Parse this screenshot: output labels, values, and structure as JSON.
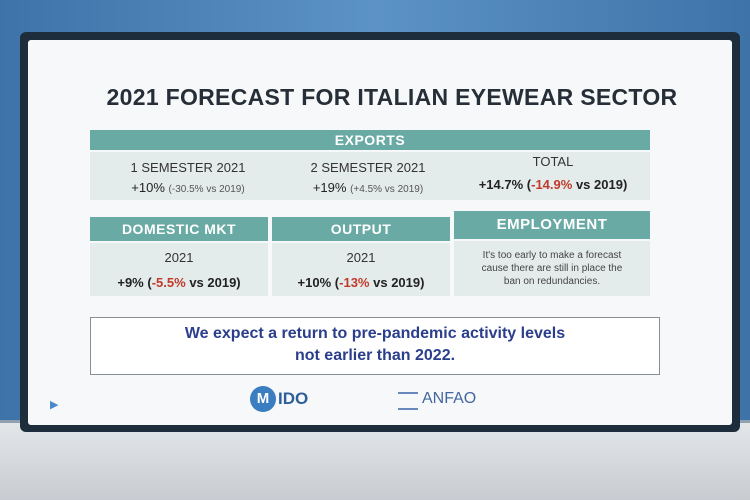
{
  "slide": {
    "title": "2021 FORECAST FOR ITALIAN EYEWEAR SECTOR",
    "exports": {
      "header": "EXPORTS",
      "sem1_label": "1 SEMESTER 2021",
      "sem1_value": "+10%",
      "sem1_note": "(-30.5% vs 2019)",
      "sem2_label": "2 SEMESTER 2021",
      "sem2_value": "+19%",
      "sem2_note": "(+4.5% vs 2019)",
      "total_label": "TOTAL",
      "total_value": "+14.7%",
      "total_open": "(",
      "total_change": "-14.9%",
      "total_note": "vs 2019)"
    },
    "domestic": {
      "header": "DOMESTIC MKT",
      "year": "2021",
      "value": "+9%",
      "open": "(",
      "change": "-5.5%",
      "note": "vs 2019)"
    },
    "output": {
      "header": "OUTPUT",
      "year": "2021",
      "value": "+10%",
      "open": "(",
      "change": "-13%",
      "note": "vs 2019)"
    },
    "employment": {
      "header": "EMPLOYMENT",
      "line1": "It's too early to make a forecast",
      "line2": "cause there are still in place the",
      "line3": "ban on redundancies."
    },
    "expectation": {
      "line1": "We expect a return to pre-pandemic activity levels",
      "line2": "not earlier than 2022."
    },
    "logos": {
      "mido_letter": "M",
      "mido_text": "IDO",
      "anfao_text": "ANFAO"
    },
    "icons": {
      "play": "play-icon"
    },
    "colors": {
      "header_teal": "#6aaaa4",
      "negative_red": "#c0392b",
      "expect_blue": "#2a3e8c"
    }
  }
}
